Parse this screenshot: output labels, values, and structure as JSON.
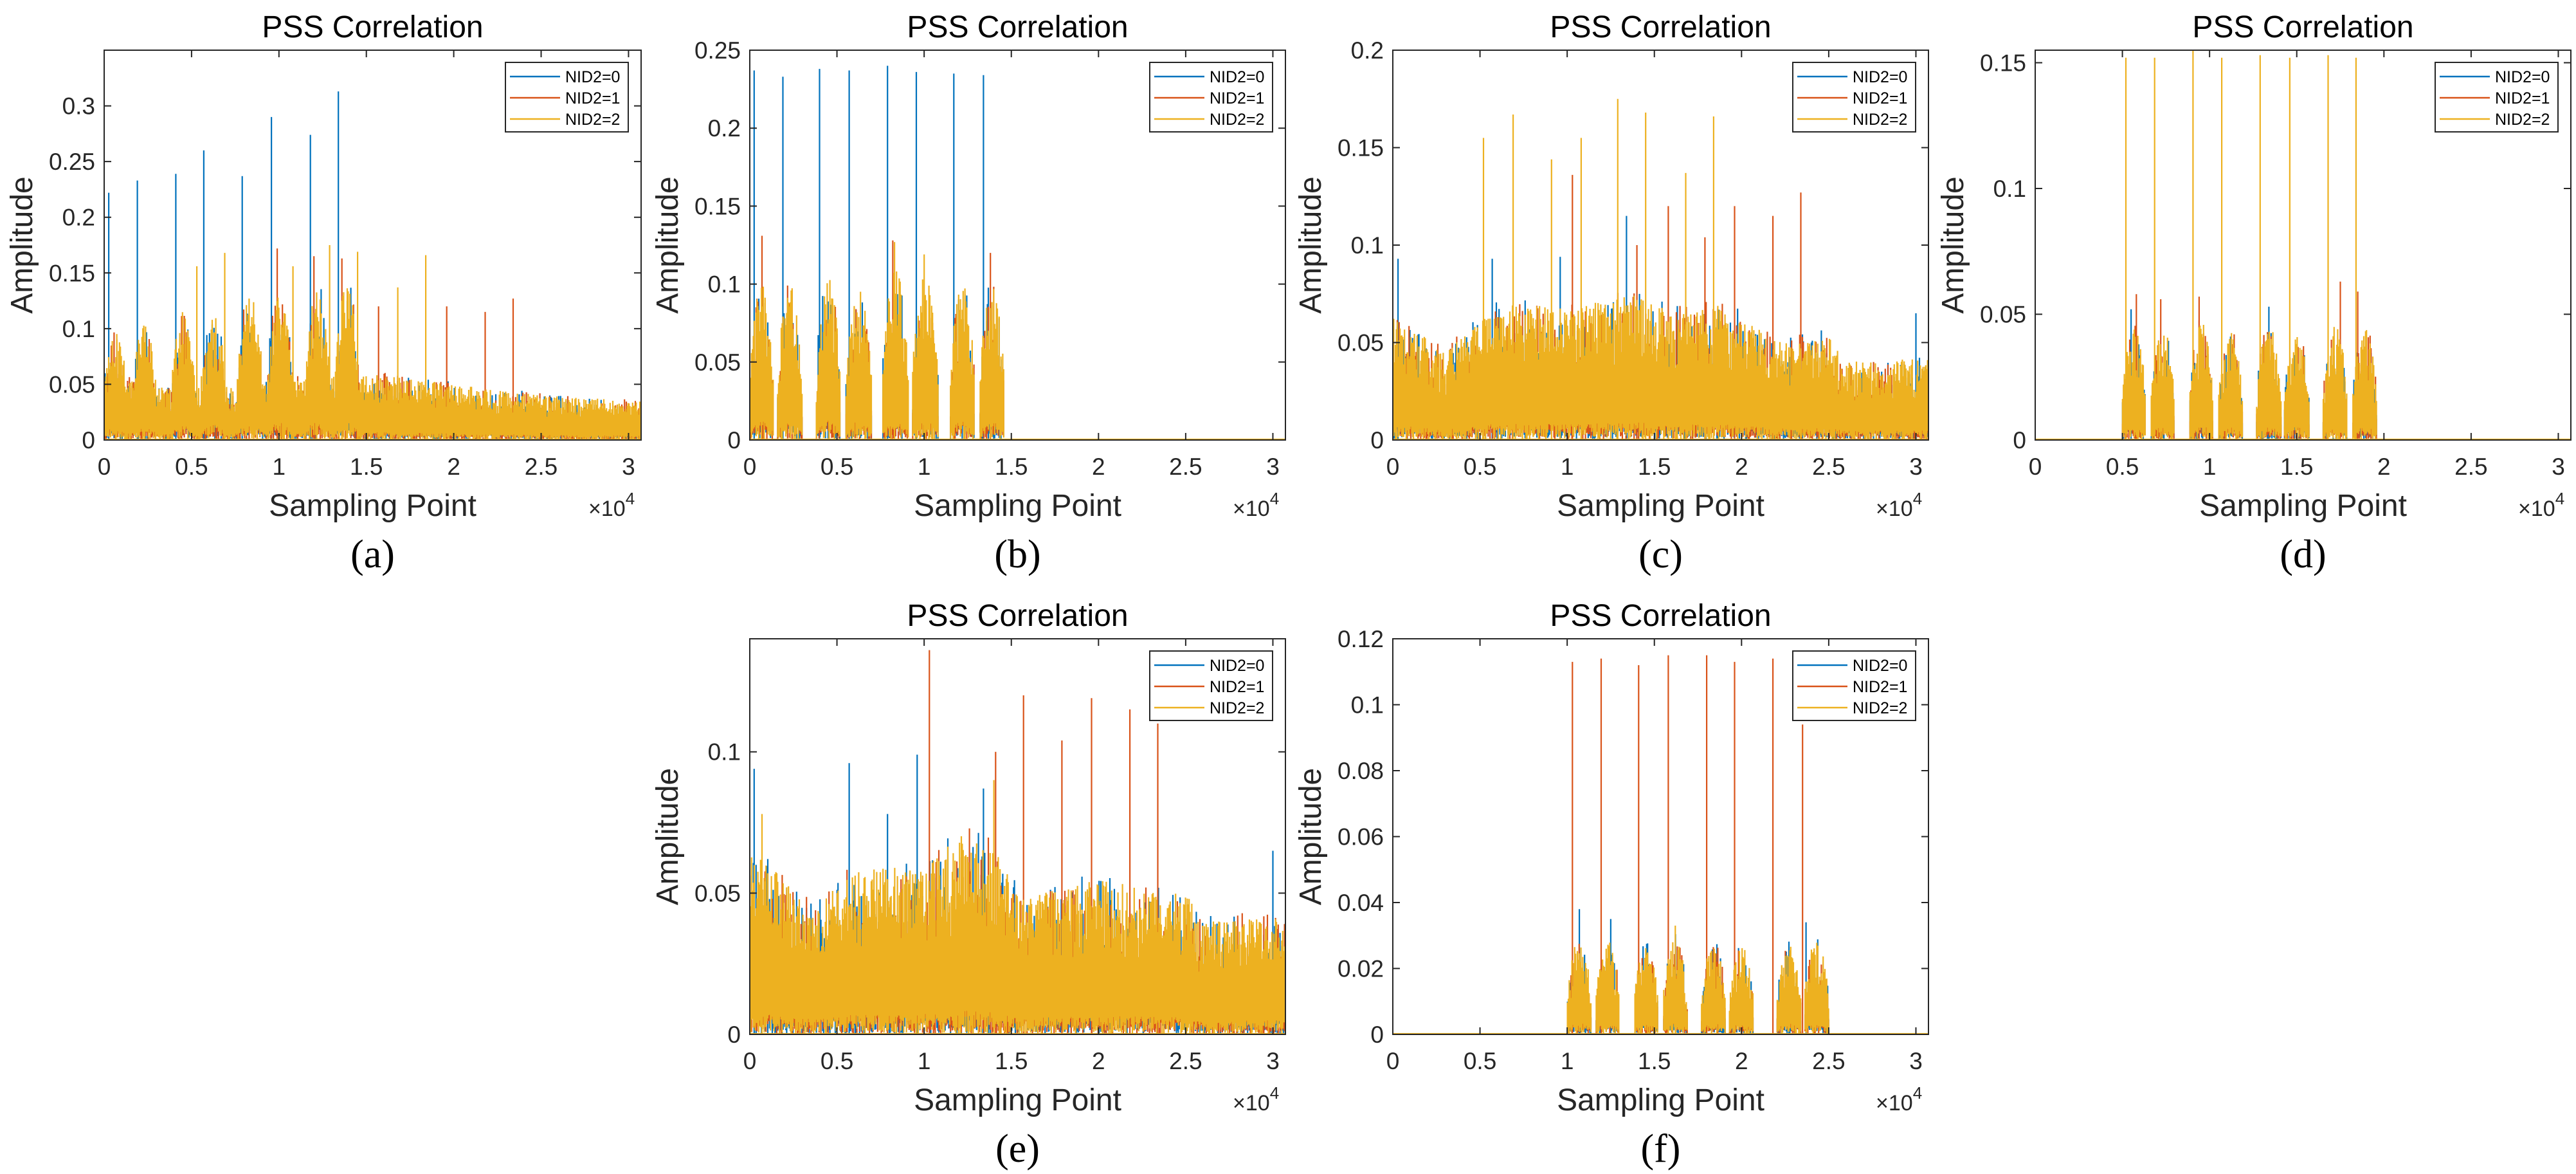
{
  "colors": {
    "NID2=0": "#0072BD",
    "NID2=1": "#D95319",
    "NID2=2": "#EDB120",
    "axis": "#262626"
  },
  "chart_data": [
    {
      "type": "line",
      "label": "(a)",
      "title": "PSS Correlation",
      "xlabel": "Sampling Point",
      "ylabel": "Amplitude",
      "x_exponent": "×10",
      "x_exponent_power": "4",
      "xlim": [
        0,
        30720
      ],
      "ylim": [
        0,
        0.35
      ],
      "xticks": [
        0,
        5000,
        10000,
        15000,
        20000,
        25000,
        30000
      ],
      "xtick_labels": [
        "0",
        "0.5",
        "1",
        "1.5",
        "2",
        "2.5",
        "3"
      ],
      "yticks": [
        0,
        0.05,
        0.1,
        0.15,
        0.2,
        0.25,
        0.3
      ],
      "ytick_labels": [
        "0",
        "0.05",
        "0.1",
        "0.15",
        "0.2",
        "0.25",
        "0.3"
      ],
      "legend": [
        "NID2=0",
        "NID2=1",
        "NID2=2"
      ],
      "legend_position": "top-right",
      "noise_floor": [
        [
          0,
          0.06
        ],
        [
          4000,
          0.045
        ],
        [
          15000,
          0.06
        ],
        [
          20000,
          0.05
        ],
        [
          25000,
          0.04
        ],
        [
          30720,
          0.035
        ]
      ],
      "bursts": [
        [
          0,
          1350,
          0.1
        ],
        [
          1600,
          3000,
          0.105
        ],
        [
          3800,
          5200,
          0.12
        ],
        [
          5500,
          7000,
          0.115
        ],
        [
          7600,
          9100,
          0.13
        ],
        [
          9300,
          10800,
          0.13
        ],
        [
          11500,
          12900,
          0.14
        ],
        [
          13200,
          14600,
          0.14
        ]
      ],
      "series": [
        {
          "name": "NID2=0",
          "peaks": [
            [
              260,
              0.222
            ],
            [
              1900,
              0.233
            ],
            [
              4100,
              0.239
            ],
            [
              5700,
              0.26
            ],
            [
              7900,
              0.237
            ],
            [
              9570,
              0.29
            ],
            [
              11800,
              0.274
            ],
            [
              13400,
              0.313
            ]
          ]
        },
        {
          "name": "NID2=1",
          "peaks": [
            [
              9900,
              0.172
            ],
            [
              12000,
              0.165
            ],
            [
              13600,
              0.163
            ],
            [
              15700,
              0.12
            ],
            [
              19600,
              0.12
            ],
            [
              21800,
              0.115
            ],
            [
              23400,
              0.127
            ]
          ]
        },
        {
          "name": "NID2=2",
          "peaks": [
            [
              5300,
              0.156
            ],
            [
              6900,
              0.168
            ],
            [
              10800,
              0.156
            ],
            [
              12900,
              0.175
            ],
            [
              14500,
              0.169
            ],
            [
              16800,
              0.137
            ],
            [
              18400,
              0.166
            ]
          ]
        }
      ]
    },
    {
      "type": "line",
      "label": "(b)",
      "title": "PSS Correlation",
      "xlabel": "Sampling Point",
      "ylabel": "Amplitude",
      "x_exponent": "×10",
      "x_exponent_power": "4",
      "xlim": [
        0,
        30720
      ],
      "ylim": [
        0,
        0.25
      ],
      "xticks": [
        0,
        5000,
        10000,
        15000,
        20000,
        25000,
        30000
      ],
      "xtick_labels": [
        "0",
        "0.5",
        "1",
        "1.5",
        "2",
        "2.5",
        "3"
      ],
      "yticks": [
        0,
        0.05,
        0.1,
        0.15,
        0.2,
        0.25
      ],
      "ytick_labels": [
        "0",
        "0.05",
        "0.1",
        "0.15",
        "0.2",
        "0.25"
      ],
      "legend": [
        "NID2=0",
        "NID2=1",
        "NID2=2"
      ],
      "legend_position": "top-right",
      "noise_floor": [],
      "bursts": [
        [
          0,
          1350,
          0.1
        ],
        [
          1600,
          3000,
          0.1
        ],
        [
          3800,
          5200,
          0.105
        ],
        [
          5500,
          7000,
          0.1
        ],
        [
          7600,
          9100,
          0.11
        ],
        [
          9300,
          10800,
          0.105
        ],
        [
          11500,
          12900,
          0.1
        ],
        [
          13200,
          14600,
          0.1
        ]
      ],
      "series": [
        {
          "name": "NID2=0",
          "peaks": [
            [
              250,
              0.237
            ],
            [
              1900,
              0.233
            ],
            [
              4000,
              0.238
            ],
            [
              5700,
              0.237
            ],
            [
              7900,
              0.24
            ],
            [
              9550,
              0.236
            ],
            [
              11700,
              0.235
            ],
            [
              13400,
              0.234
            ]
          ]
        },
        {
          "name": "NID2=1",
          "peaks": [
            [
              700,
              0.131
            ],
            [
              8200,
              0.128
            ],
            [
              13800,
              0.12
            ]
          ]
        },
        {
          "name": "NID2=2",
          "peaks": [
            [
              8300,
              0.127
            ],
            [
              10000,
              0.119
            ]
          ]
        }
      ]
    },
    {
      "type": "line",
      "label": "(c)",
      "title": "PSS Correlation",
      "xlabel": "Sampling Point",
      "ylabel": "Amplitude",
      "x_exponent": "×10",
      "x_exponent_power": "4",
      "xlim": [
        0,
        30720
      ],
      "ylim": [
        0,
        0.2
      ],
      "xticks": [
        0,
        5000,
        10000,
        15000,
        20000,
        25000,
        30000
      ],
      "xtick_labels": [
        "0",
        "0.5",
        "1",
        "1.5",
        "2",
        "2.5",
        "3"
      ],
      "yticks": [
        0,
        0.05,
        0.1,
        0.15,
        0.2
      ],
      "ytick_labels": [
        "0",
        "0.05",
        "0.1",
        "0.15",
        "0.2"
      ],
      "legend": [
        "NID2=0",
        "NID2=1",
        "NID2=2"
      ],
      "legend_position": "top-right",
      "noise_floor": [
        [
          0,
          0.065
        ],
        [
          3000,
          0.045
        ],
        [
          6000,
          0.07
        ],
        [
          10000,
          0.068
        ],
        [
          14000,
          0.075
        ],
        [
          16000,
          0.065
        ],
        [
          19000,
          0.07
        ],
        [
          22000,
          0.05
        ],
        [
          25000,
          0.055
        ],
        [
          26000,
          0.04
        ],
        [
          30720,
          0.042
        ]
      ],
      "bursts": [],
      "series": [
        {
          "name": "NID2=0",
          "peaks": [
            [
              300,
              0.093
            ],
            [
              5700,
              0.093
            ],
            [
              13400,
              0.115
            ],
            [
              9600,
              0.094
            ],
            [
              30000,
              0.065
            ]
          ]
        },
        {
          "name": "NID2=1",
          "peaks": [
            [
              10300,
              0.136
            ],
            [
              15800,
              0.12
            ],
            [
              17900,
              0.104
            ],
            [
              19600,
              0.12
            ],
            [
              21800,
              0.115
            ],
            [
              23400,
              0.127
            ],
            [
              14000,
              0.1
            ]
          ]
        },
        {
          "name": "NID2=2",
          "peaks": [
            [
              5200,
              0.155
            ],
            [
              6900,
              0.167
            ],
            [
              9100,
              0.144
            ],
            [
              10800,
              0.155
            ],
            [
              12900,
              0.175
            ],
            [
              14500,
              0.168
            ],
            [
              16800,
              0.137
            ],
            [
              18400,
              0.166
            ]
          ]
        }
      ]
    },
    {
      "type": "line",
      "label": "(d)",
      "title": "PSS Correlation",
      "xlabel": "Sampling Point",
      "ylabel": "Amplitude",
      "x_exponent": "×10",
      "x_exponent_power": "4",
      "xlim": [
        0,
        30720
      ],
      "ylim": [
        0,
        0.155
      ],
      "xticks": [
        0,
        5000,
        10000,
        15000,
        20000,
        25000,
        30000
      ],
      "xtick_labels": [
        "0",
        "0.5",
        "1",
        "1.5",
        "2",
        "2.5",
        "3"
      ],
      "yticks": [
        0,
        0.05,
        0.1,
        0.15
      ],
      "ytick_labels": [
        "0",
        "0.05",
        "0.1",
        "0.15"
      ],
      "legend": [
        "NID2=0",
        "NID2=1",
        "NID2=2"
      ],
      "legend_position": "top-right",
      "noise_floor": [],
      "bursts": [
        [
          5000,
          6350,
          0.045
        ],
        [
          6650,
          8000,
          0.045
        ],
        [
          8850,
          10200,
          0.047
        ],
        [
          10500,
          11900,
          0.043
        ],
        [
          12700,
          14100,
          0.046
        ],
        [
          14300,
          15700,
          0.043
        ],
        [
          16500,
          17900,
          0.046
        ],
        [
          18200,
          19600,
          0.045
        ]
      ],
      "series": [
        {
          "name": "NID2=0",
          "peaks": [
            [
              5500,
              0.052
            ],
            [
              13400,
              0.053
            ]
          ]
        },
        {
          "name": "NID2=1",
          "peaks": [
            [
              5800,
              0.058
            ],
            [
              7200,
              0.056
            ],
            [
              9400,
              0.057
            ],
            [
              17500,
              0.063
            ],
            [
              18500,
              0.059
            ]
          ]
        },
        {
          "name": "NID2=2",
          "peaks": [
            [
              5200,
              0.152
            ],
            [
              6850,
              0.152
            ],
            [
              9050,
              0.155
            ],
            [
              10700,
              0.152
            ],
            [
              12900,
              0.153
            ],
            [
              14600,
              0.152
            ],
            [
              16800,
              0.153
            ],
            [
              18400,
              0.152
            ]
          ]
        }
      ]
    },
    {
      "type": "line",
      "label": "(e)",
      "title": "PSS Correlation",
      "xlabel": "Sampling Point",
      "ylabel": "Amplitude",
      "x_exponent": "×10",
      "x_exponent_power": "4",
      "xlim": [
        0,
        30720
      ],
      "ylim": [
        0,
        0.14
      ],
      "xticks": [
        0,
        5000,
        10000,
        15000,
        20000,
        25000,
        30000
      ],
      "xtick_labels": [
        "0",
        "0.5",
        "1",
        "1.5",
        "2",
        "2.5",
        "3"
      ],
      "yticks": [
        0,
        0.05,
        0.1
      ],
      "ytick_labels": [
        "0",
        "0.05",
        "0.1"
      ],
      "legend": [
        "NID2=0",
        "NID2=1",
        "NID2=2"
      ],
      "legend_position": "top-right",
      "noise_floor": [
        [
          0,
          0.068
        ],
        [
          3500,
          0.045
        ],
        [
          6000,
          0.058
        ],
        [
          10000,
          0.06
        ],
        [
          12500,
          0.072
        ],
        [
          14000,
          0.068
        ],
        [
          15500,
          0.048
        ],
        [
          20000,
          0.055
        ],
        [
          25000,
          0.05
        ],
        [
          26000,
          0.04
        ],
        [
          30720,
          0.042
        ]
      ],
      "bursts": [],
      "series": [
        {
          "name": "NID2=0",
          "peaks": [
            [
              250,
              0.094
            ],
            [
              5700,
              0.096
            ],
            [
              9600,
              0.099
            ],
            [
              7900,
              0.078
            ],
            [
              13400,
              0.087
            ],
            [
              30000,
              0.065
            ]
          ]
        },
        {
          "name": "NID2=1",
          "peaks": [
            [
              10300,
              0.136
            ],
            [
              15700,
              0.12
            ],
            [
              17900,
              0.104
            ],
            [
              19600,
              0.119
            ],
            [
              21800,
              0.115
            ],
            [
              23400,
              0.11
            ],
            [
              14100,
              0.1
            ]
          ]
        },
        {
          "name": "NID2=2",
          "peaks": [
            [
              700,
              0.078
            ],
            [
              14000,
              0.09
            ]
          ]
        }
      ]
    },
    {
      "type": "line",
      "label": "(f)",
      "title": "PSS Correlation",
      "xlabel": "Sampling Point",
      "ylabel": "Amplitude",
      "x_exponent": "×10",
      "x_exponent_power": "4",
      "xlim": [
        0,
        30720
      ],
      "ylim": [
        0,
        0.12
      ],
      "xticks": [
        0,
        5000,
        10000,
        15000,
        20000,
        25000,
        30000
      ],
      "xtick_labels": [
        "0",
        "0.5",
        "1",
        "1.5",
        "2",
        "2.5",
        "3"
      ],
      "yticks": [
        0,
        0.02,
        0.04,
        0.06,
        0.08,
        0.1,
        0.12
      ],
      "ytick_labels": [
        "0",
        "0.02",
        "0.04",
        "0.06",
        "0.08",
        "0.1",
        "0.12"
      ],
      "legend": [
        "NID2=0",
        "NID2=1",
        "NID2=2"
      ],
      "legend_position": "top-right",
      "noise_floor": [],
      "bursts": [
        [
          10000,
          11400,
          0.029
        ],
        [
          11650,
          13000,
          0.029
        ],
        [
          13850,
          15200,
          0.028
        ],
        [
          15500,
          16900,
          0.029
        ],
        [
          17700,
          19100,
          0.028
        ],
        [
          19300,
          20700,
          0.027
        ],
        [
          22000,
          23400,
          0.028
        ],
        [
          23600,
          25000,
          0.029
        ]
      ],
      "series": [
        {
          "name": "NID2=0",
          "peaks": [
            [
              10700,
              0.038
            ],
            [
              12500,
              0.035
            ],
            [
              23700,
              0.034
            ]
          ]
        },
        {
          "name": "NID2=1",
          "peaks": [
            [
              10300,
              0.113
            ],
            [
              11950,
              0.114
            ],
            [
              14100,
              0.112
            ],
            [
              15800,
              0.115
            ],
            [
              18000,
              0.115
            ],
            [
              19600,
              0.113
            ],
            [
              21800,
              0.114
            ],
            [
              23500,
              0.094
            ]
          ]
        },
        {
          "name": "NID2=2",
          "peaks": [
            [
              16200,
              0.033
            ]
          ]
        }
      ]
    }
  ]
}
